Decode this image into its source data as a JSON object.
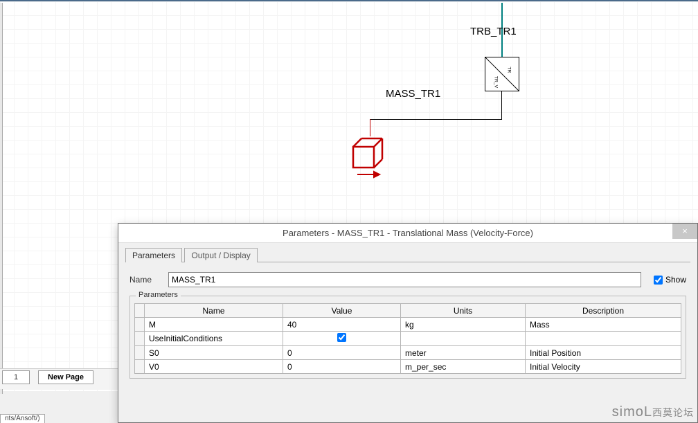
{
  "canvas": {
    "trb_label": "TRB_TR1",
    "trb_port_top": "TR",
    "trb_port_bottom": "TR_V",
    "mass_label": "MASS_TR1"
  },
  "pager": {
    "page_num": "1",
    "new_page": "New Page",
    "status": "nts/Ansoft/)"
  },
  "dialog": {
    "title": "Parameters - MASS_TR1 - Translational Mass (Velocity-Force)",
    "close": "×",
    "tabs": {
      "parameters": "Parameters",
      "output": "Output / Display"
    },
    "name_label": "Name",
    "name_value": "MASS_TR1",
    "show_label": "Show",
    "show_checked": true,
    "group_legend": "Parameters",
    "columns": {
      "name": "Name",
      "value": "Value",
      "units": "Units",
      "description": "Description"
    },
    "rows": [
      {
        "name": "M",
        "value": "40",
        "units": "kg",
        "description": "Mass",
        "checkbox": false
      },
      {
        "name": "UseInitialConditions",
        "value": "",
        "units": "",
        "description": "",
        "checkbox": true,
        "checked": true
      },
      {
        "name": "S0",
        "value": "0",
        "units": "meter",
        "description": "Initial Position",
        "checkbox": false
      },
      {
        "name": "V0",
        "value": "0",
        "units": "m_per_sec",
        "description": "Initial Velocity",
        "checkbox": false
      }
    ]
  },
  "watermark": {
    "brand": "simoL",
    "cn": "西莫论坛"
  }
}
